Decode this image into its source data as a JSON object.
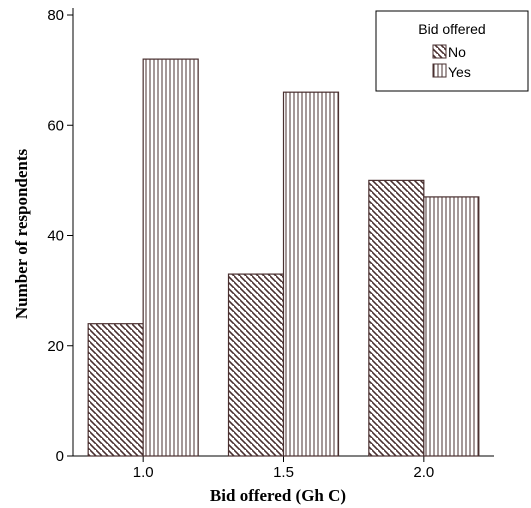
{
  "chart_data": {
    "type": "bar",
    "categories": [
      "1.0",
      "1.5",
      "2.0"
    ],
    "series": [
      {
        "name": "No",
        "values": [
          24,
          33,
          50
        ],
        "pattern": "diagonal-hatch"
      },
      {
        "name": "Yes",
        "values": [
          72,
          66,
          47
        ],
        "pattern": "vertical-lines"
      }
    ],
    "xlabel": "Bid offered (Gh C)",
    "ylabel": "Number of respondents",
    "ylim": [
      0,
      80
    ],
    "yticks": [
      0,
      20,
      40,
      60,
      80
    ],
    "grid": false,
    "legend": {
      "title": "Bid offered",
      "position": "top-right"
    },
    "colors": {
      "stroke": "#4a3030",
      "background": "#ffffff"
    }
  }
}
